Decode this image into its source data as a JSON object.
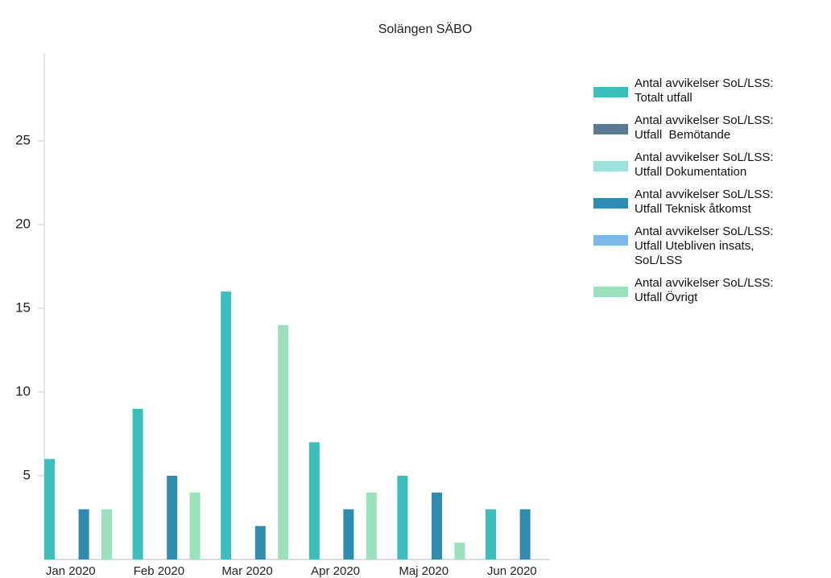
{
  "chart_data": {
    "type": "bar",
    "title": "Solängen SÄBO",
    "categories": [
      "Jan 2020",
      "Feb 2020",
      "Mar 2020",
      "Apr 2020",
      "Maj 2020",
      "Jun 2020"
    ],
    "series": [
      {
        "name": "Antal avvikelser SoL/LSS: Totalt utfall",
        "color": "#3bbfbd",
        "values": [
          6,
          9,
          16,
          7,
          5,
          3
        ]
      },
      {
        "name": "Antal avvikelser SoL/LSS: Utfall  Bemötande",
        "color": "#5b7b95",
        "values": [
          0,
          0,
          0,
          0,
          0,
          0
        ]
      },
      {
        "name": "Antal avvikelser SoL/LSS: Utfall Dokumentation",
        "color": "#9fe1dc",
        "values": [
          0,
          0,
          0,
          0,
          0,
          0
        ]
      },
      {
        "name": "Antal avvikelser SoL/LSS: Utfall Teknisk åtkomst",
        "color": "#2f8bb0",
        "values": [
          3,
          5,
          2,
          3,
          4,
          3
        ]
      },
      {
        "name": "Antal avvikelser SoL/LSS: Utfall Utebliven insats, SoL/LSS",
        "color": "#7db9e8",
        "values": [
          0,
          0,
          0,
          0,
          0,
          0
        ]
      },
      {
        "name": "Antal avvikelser SoL/LSS: Utfall Övrigt",
        "color": "#9ae1bc",
        "values": [
          3,
          4,
          14,
          4,
          1,
          0
        ]
      }
    ],
    "ylim": [
      0,
      30
    ],
    "yticks": [
      5,
      10,
      15,
      20,
      25
    ],
    "grid": false
  }
}
